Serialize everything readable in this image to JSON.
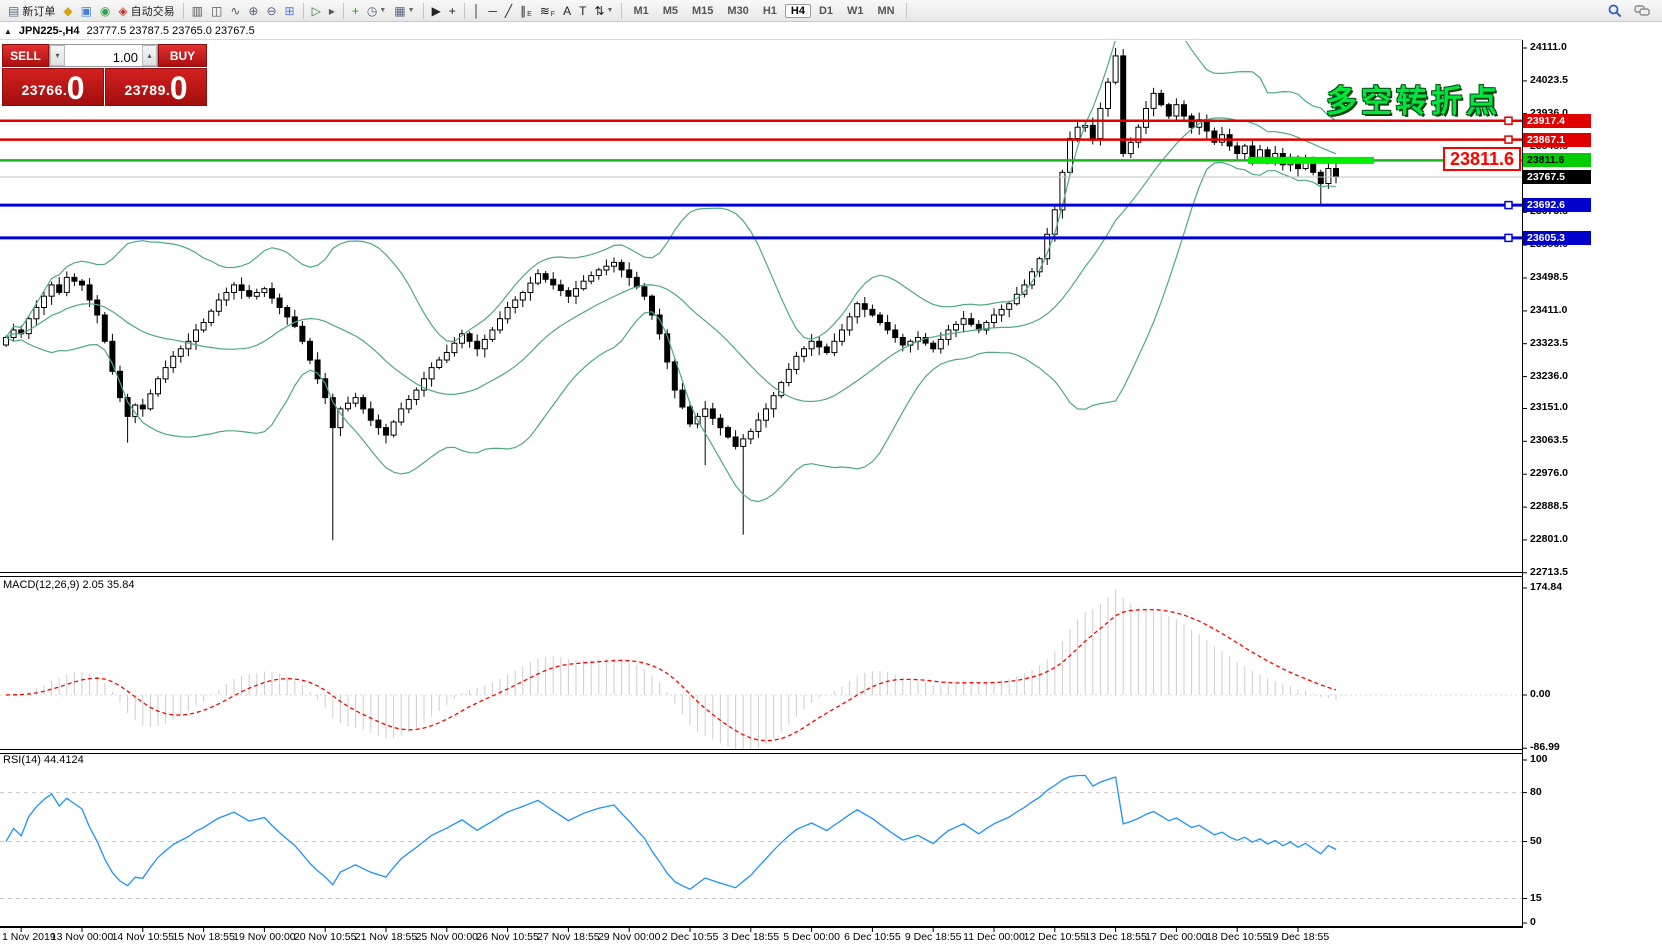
{
  "toolbar": {
    "buttons": [
      {
        "name": "new-order-button",
        "glyph": "▤",
        "color": "#5a6b85",
        "label": "新订单"
      },
      {
        "name": "journal-icon",
        "glyph": "◆",
        "color": "#d9a21b"
      },
      {
        "name": "publisher-icon",
        "glyph": "▣",
        "color": "#4a7fd4"
      },
      {
        "name": "signals-icon",
        "glyph": "◉",
        "color": "#35a04a"
      },
      {
        "name": "auto-trading-button",
        "glyph": "◈",
        "color": "#c23030",
        "label": "自动交易"
      },
      {
        "type": "sep"
      },
      {
        "name": "bar-chart-button",
        "glyph": "▥",
        "color": "#555"
      },
      {
        "name": "candlestick-chart-button",
        "glyph": "◫",
        "color": "#555"
      },
      {
        "name": "line-chart-button",
        "glyph": "∿",
        "color": "#555"
      },
      {
        "name": "zoom-in-button",
        "glyph": "⊕",
        "color": "#55617a"
      },
      {
        "name": "zoom-out-button",
        "glyph": "⊖",
        "color": "#55617a"
      },
      {
        "name": "tile-windows-button",
        "glyph": "⊞",
        "color": "#4a7fd4"
      },
      {
        "type": "sep"
      },
      {
        "name": "auto-scroll-button",
        "glyph": "▷",
        "color": "#2a7a2a"
      },
      {
        "name": "chart-shift-button",
        "glyph": "▸",
        "color": "#555"
      },
      {
        "type": "sep"
      },
      {
        "name": "indicators-add-button",
        "glyph": "+",
        "color": "#1f9e1f"
      },
      {
        "name": "periods-clock-button",
        "glyph": "◷",
        "color": "#55617a",
        "caret": true
      },
      {
        "name": "templates-button",
        "glyph": "▦",
        "color": "#55617a",
        "caret": true
      },
      {
        "type": "sep"
      },
      {
        "name": "cursor-button",
        "glyph": "▶",
        "color": "#222"
      },
      {
        "name": "crosshair-button",
        "glyph": "+",
        "color": "#222"
      },
      {
        "type": "sep"
      },
      {
        "name": "vertical-line-button",
        "glyph": "│",
        "color": "#222"
      },
      {
        "name": "horizontal-line-button",
        "glyph": "─",
        "color": "#222"
      },
      {
        "name": "trendline-button",
        "glyph": "╱",
        "color": "#222"
      },
      {
        "name": "equidistant-channel-button",
        "glyph": "∥",
        "color": "#222",
        "sub": "E"
      },
      {
        "name": "fibonacci-button",
        "glyph": "≋",
        "color": "#222",
        "sub": "F"
      },
      {
        "name": "text-button",
        "glyph": "A",
        "color": "#222"
      },
      {
        "name": "text-label-button",
        "glyph": "T",
        "color": "#222"
      },
      {
        "name": "arrows-button",
        "glyph": "⇅",
        "color": "#222",
        "caret": true
      },
      {
        "type": "sep"
      }
    ],
    "timeframes": [
      "M1",
      "M5",
      "M15",
      "M30",
      "H1",
      "H4",
      "D1",
      "W1",
      "MN"
    ],
    "active_timeframe": "H4"
  },
  "symbol_bar": {
    "collapse_icon": "▲",
    "symbol": "JPN225-,H4",
    "ohlc": "23777.5 23787.5 23765.0 23767.5"
  },
  "trade_panel": {
    "sell_label": "SELL",
    "buy_label": "BUY",
    "volume": "1.00",
    "spin_down": "▾",
    "spin_up": "▴",
    "sell_price_main": "23766",
    "sell_price_dot": ".",
    "sell_price_big": "0",
    "buy_price_main": "23789",
    "buy_price_dot": ".",
    "buy_price_big": "0"
  },
  "annotations": {
    "turning_point": "多空转折点",
    "price_box": "23811.6"
  },
  "indicators": {
    "macd_label": "MACD(12,26,9) 2.05 35.84",
    "rsi_label": "RSI(14) 44.4124"
  },
  "chart_data": {
    "type": "candlestick",
    "symbol": "JPN225-",
    "timeframe": "H4",
    "current_ohlc": {
      "open": 23777.5,
      "high": 23787.5,
      "low": 23765.0,
      "close": 23767.5
    },
    "price_axis_ticks": [
      "24111.0",
      "24023.5",
      "23936.0",
      "23848.5",
      "23761.0",
      "23673.5",
      "23586.0",
      "23498.5",
      "23411.0",
      "23323.5",
      "23236.0",
      "23151.0",
      "23063.5",
      "22976.0",
      "22888.5",
      "22801.0",
      "22713.5"
    ],
    "time_axis_labels": [
      "1 Nov 2019",
      "13 Nov 00:00",
      "14 Nov 10:55",
      "15 Nov 18:55",
      "19 Nov 00:00",
      "20 Nov 10:55",
      "21 Nov 18:55",
      "25 Nov 00:00",
      "26 Nov 10:55",
      "27 Nov 18:55",
      "29 Nov 00:00",
      "2 Dec 10:55",
      "3 Dec 18:55",
      "5 Dec 00:00",
      "6 Dec 10:55",
      "9 Dec 18:55",
      "11 Dec 00:00",
      "12 Dec 10:55",
      "13 Dec 18:55",
      "17 Dec 00:00",
      "18 Dec 10:55",
      "19 Dec 18:55"
    ],
    "open_first": 23320,
    "closes": [
      23340,
      23360,
      23350,
      23390,
      23420,
      23450,
      23480,
      23460,
      23500,
      23490,
      23480,
      23440,
      23400,
      23330,
      23250,
      23180,
      23130,
      23160,
      23150,
      23190,
      23230,
      23260,
      23290,
      23310,
      23330,
      23360,
      23380,
      23410,
      23440,
      23460,
      23480,
      23465,
      23450,
      23460,
      23470,
      23445,
      23420,
      23395,
      23370,
      23330,
      23280,
      23230,
      23180,
      23100,
      23150,
      23165,
      23180,
      23150,
      23120,
      23100,
      23080,
      23115,
      23150,
      23175,
      23200,
      23230,
      23260,
      23280,
      23300,
      23325,
      23350,
      23330,
      23310,
      23335,
      23360,
      23390,
      23420,
      23440,
      23460,
      23485,
      23510,
      23495,
      23480,
      23465,
      23450,
      23470,
      23490,
      23505,
      23520,
      23530,
      23540,
      23520,
      23500,
      23475,
      23450,
      23400,
      23350,
      23275,
      23200,
      23155,
      23110,
      23130,
      23150,
      23125,
      23100,
      23075,
      23050,
      23070,
      23090,
      23120,
      23150,
      23185,
      23220,
      23255,
      23290,
      23310,
      23330,
      23315,
      23300,
      23330,
      23360,
      23395,
      23430,
      23415,
      23400,
      23380,
      23360,
      23340,
      23320,
      23330,
      23340,
      23325,
      23310,
      23335,
      23360,
      23375,
      23390,
      23375,
      23360,
      23380,
      23400,
      23415,
      23430,
      23455,
      23480,
      23515,
      23550,
      23615,
      23680,
      23780,
      23870,
      23900,
      23905,
      23870,
      23950,
      24020,
      24090,
      23830,
      23860,
      23900,
      23950,
      23990,
      23960,
      23930,
      23960,
      23930,
      23900,
      23920,
      23890,
      23860,
      23880,
      23850,
      23830,
      23850,
      23820,
      23840,
      23810,
      23830,
      23800,
      23820,
      23790,
      23810,
      23780,
      23750,
      23790,
      23767.5
    ],
    "wick_overrides": {
      "16": {
        "low": 23060
      },
      "43": {
        "low": 22800
      },
      "92": {
        "low": 23000
      },
      "97": {
        "low": 22815
      },
      "146": {
        "high": 24111
      },
      "173": {
        "low": 23695
      }
    },
    "horizontal_lines": [
      {
        "price": 23917.4,
        "label": "23917.4",
        "color": "#e00000",
        "w": 2.5,
        "label_bg": "#e00000",
        "label_fg": "#ffffff",
        "type": "resistance"
      },
      {
        "price": 23867.1,
        "label": "23867.1",
        "color": "#e00000",
        "w": 2.5,
        "label_bg": "#e00000",
        "label_fg": "#ffffff",
        "type": "resistance"
      },
      {
        "price": 23811.6,
        "label": "23811.6",
        "color": "#1db41d",
        "w": 2.5,
        "label_bg": "#00cc00",
        "label_fg": "#000000",
        "type": "level"
      },
      {
        "price": 23767.5,
        "label": "23767.5",
        "color": "#c0c0c0",
        "w": 1,
        "label_bg": "#000000",
        "label_fg": "#ffffff",
        "type": "bid"
      },
      {
        "price": 23692.6,
        "label": "23692.6",
        "color": "#0000d8",
        "w": 3,
        "label_bg": "#0000cc",
        "label_fg": "#ffffff",
        "type": "support"
      },
      {
        "price": 23605.3,
        "label": "23605.3",
        "color": "#0000d8",
        "w": 3,
        "label_bg": "#0000cc",
        "label_fg": "#ffffff",
        "type": "support"
      }
    ],
    "highlight_bar": {
      "color": "#00ee00",
      "price": 23811.6,
      "note": "thick green segment under recent candles"
    },
    "bollinger": {
      "period": 20,
      "deviation": 2,
      "color": "#4fa97e"
    },
    "macd": {
      "params": "12,26,9",
      "values": "2.05 35.84",
      "axis_ticks": [
        "174.84",
        "0.00",
        "-86.99"
      ],
      "axis_values": [
        174.84,
        0,
        -86.99
      ],
      "histogram_color": "#cccccc",
      "signal_color": "#ff0000"
    },
    "rsi": {
      "period": 14,
      "value": "44.4124",
      "axis_ticks": [
        "100",
        "80",
        "50",
        "15",
        "0"
      ],
      "axis_values": [
        100,
        80,
        50,
        15,
        0
      ],
      "level_lines": [
        80,
        50,
        15
      ],
      "color": "#1e90ff"
    }
  }
}
